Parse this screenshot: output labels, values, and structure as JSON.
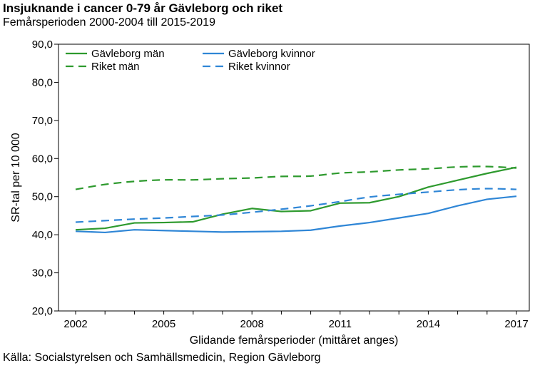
{
  "header": {
    "title": "Insjuknande i cancer 0-79 år Gävleborg och riket",
    "subtitle": "Femårsperioden 2000-2004 till 2015-2019"
  },
  "footer": {
    "source": "Källa: Socialstyrelsen och Samhällsmedicin, Region Gävleborg"
  },
  "colors": {
    "green": "#2e9a2e",
    "blue": "#2f86d6"
  },
  "chart_data": {
    "type": "line",
    "title": "Insjuknande i cancer 0-79 år Gävleborg och riket",
    "subtitle": "Femårsperioden 2000-2004 till 2015-2019",
    "xlabel": "Glidande femårsperioder (mittåret anges)",
    "ylabel": "SR-tal per 10 000",
    "xlim": [
      2002,
      2017
    ],
    "ylim": [
      20,
      90
    ],
    "x_ticks": [
      "2002",
      "2005",
      "2008",
      "2011",
      "2014",
      "2017"
    ],
    "y_ticks": [
      "20,0",
      "30,0",
      "40,0",
      "50,0",
      "60,0",
      "70,0",
      "80,0",
      "90,0"
    ],
    "legend_position": "top-left",
    "grid": false,
    "x": [
      2002,
      2003,
      2004,
      2005,
      2006,
      2007,
      2008,
      2009,
      2010,
      2011,
      2012,
      2013,
      2014,
      2015,
      2016,
      2017
    ],
    "series": [
      {
        "name": "Gävleborg män",
        "color": "#2e9a2e",
        "dash": "solid",
        "values": [
          41.3,
          41.7,
          43.1,
          43.2,
          43.4,
          45.4,
          46.9,
          46.1,
          46.3,
          48.3,
          48.4,
          50.0,
          52.5,
          54.3,
          56.1,
          57.7
        ]
      },
      {
        "name": "Gävleborg kvinnor",
        "color": "#2f86d6",
        "dash": "solid",
        "values": [
          40.9,
          40.6,
          41.3,
          41.1,
          40.9,
          40.7,
          40.8,
          40.9,
          41.2,
          42.3,
          43.2,
          44.4,
          45.6,
          47.6,
          49.3,
          50.1
        ]
      },
      {
        "name": "Riket män",
        "color": "#2e9a2e",
        "dash": "dashed",
        "values": [
          51.9,
          53.2,
          54.0,
          54.4,
          54.4,
          54.7,
          54.9,
          55.3,
          55.4,
          56.2,
          56.5,
          57.0,
          57.3,
          57.8,
          57.9,
          57.5
        ]
      },
      {
        "name": "Riket kvinnor",
        "color": "#2f86d6",
        "dash": "dashed",
        "values": [
          43.3,
          43.7,
          44.1,
          44.4,
          44.8,
          45.2,
          45.9,
          46.7,
          47.6,
          48.7,
          49.9,
          50.6,
          51.2,
          51.8,
          52.1,
          51.9
        ]
      }
    ]
  }
}
